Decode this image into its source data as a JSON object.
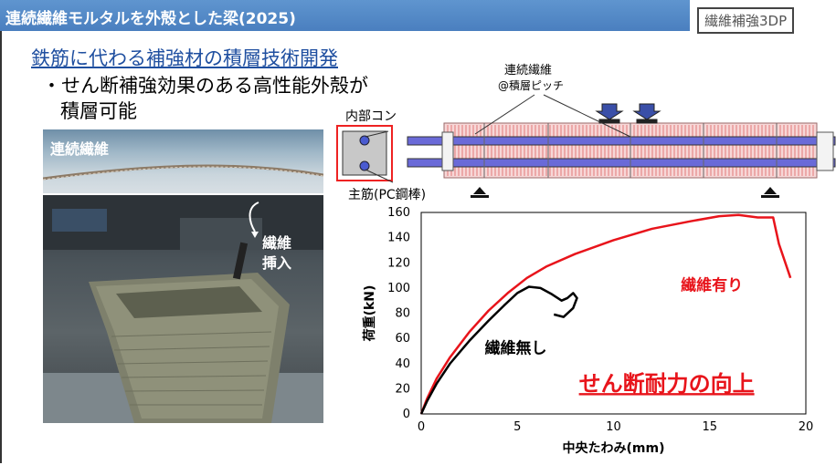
{
  "header": {
    "title": "連続繊維モルタルを外殻とした梁(2025)",
    "tag": "繊維補強3DP"
  },
  "subtitle": "鉄筋に代わる補強材の積層技術開発",
  "bullet": {
    "line1": "・せん断補強効果のある高性能外殻が",
    "line2": "積層可能"
  },
  "photos": {
    "fiber_label": "連続繊維",
    "insert_label_1": "繊維",
    "insert_label_2": "挿入"
  },
  "diagram": {
    "fiber_pitch_line1": "連続繊維",
    "fiber_pitch_line2": "@積層ピッチ",
    "inner_concrete": "内部コン",
    "main_bar": "主筋(PC鋼棒)"
  },
  "chart_data": {
    "type": "line",
    "xlabel": "中央たわみ(mm)",
    "ylabel": "荷重(kN)",
    "xlim": [
      0,
      20
    ],
    "ylim": [
      0,
      160
    ],
    "x_ticks": [
      "0",
      "5",
      "10",
      "15",
      "20"
    ],
    "y_ticks": [
      "0",
      "20",
      "40",
      "60",
      "80",
      "100",
      "120",
      "140",
      "160"
    ],
    "series": [
      {
        "name": "繊維有り",
        "color": "#e8141b",
        "points": [
          [
            0,
            0
          ],
          [
            0.3,
            12
          ],
          [
            0.8,
            28
          ],
          [
            1.5,
            45
          ],
          [
            2.5,
            65
          ],
          [
            3.5,
            82
          ],
          [
            4.5,
            96
          ],
          [
            5.5,
            108
          ],
          [
            6.5,
            117
          ],
          [
            8,
            127
          ],
          [
            10,
            138
          ],
          [
            12,
            147
          ],
          [
            14,
            153
          ],
          [
            15.5,
            157
          ],
          [
            16.5,
            158
          ],
          [
            17.5,
            156
          ],
          [
            18.3,
            156
          ],
          [
            18.6,
            135
          ],
          [
            19.2,
            108
          ]
        ]
      },
      {
        "name": "繊維無し",
        "color": "#000000",
        "points": [
          [
            0,
            0
          ],
          [
            0.3,
            10
          ],
          [
            0.8,
            24
          ],
          [
            1.5,
            40
          ],
          [
            2.5,
            58
          ],
          [
            3.5,
            74
          ],
          [
            4.3,
            86
          ],
          [
            5.0,
            96
          ],
          [
            5.6,
            101
          ],
          [
            6.2,
            100
          ],
          [
            6.8,
            95
          ],
          [
            7.3,
            90
          ],
          [
            7.6,
            92
          ],
          [
            7.9,
            96
          ],
          [
            8.1,
            92
          ],
          [
            7.9,
            84
          ],
          [
            7.4,
            77
          ],
          [
            6.9,
            79
          ]
        ]
      }
    ],
    "annotations": {
      "with_fiber": "繊維有り",
      "without_fiber": "繊維無し",
      "headline": "せん断耐力の向上"
    }
  }
}
